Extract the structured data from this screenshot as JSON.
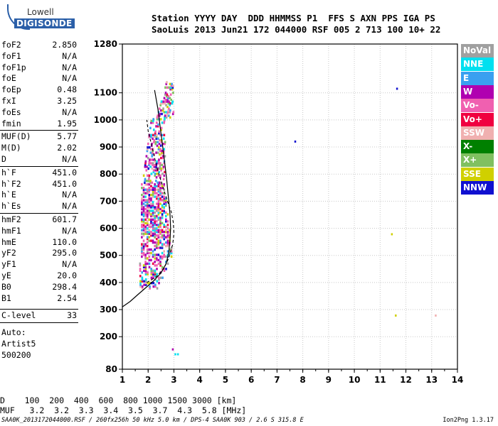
{
  "logo": {
    "line1": "Lowell",
    "line2": "DIGISONDE"
  },
  "header": {
    "labels_line": "Station YYYY DAY  DDD HHMMSS P1  FFS S AXN PPS IGA PS",
    "values_line": "SaoLuis 2013 Jun21 172 044000 RSF 005 2 713 100 10+ 22"
  },
  "params": [
    {
      "k": "foF2",
      "v": "2.850"
    },
    {
      "k": "foF1",
      "v": "N/A"
    },
    {
      "k": "foF1p",
      "v": "N/A"
    },
    {
      "k": "foE",
      "v": "N/A"
    },
    {
      "k": "foEp",
      "v": "0.48"
    },
    {
      "k": "fxI",
      "v": "3.25"
    },
    {
      "k": "foEs",
      "v": "N/A"
    },
    {
      "k": "fmin",
      "v": "1.95"
    },
    {
      "k": "MUF(D)",
      "v": "5.77"
    },
    {
      "k": "M(D)",
      "v": "2.02"
    },
    {
      "k": "D",
      "v": "N/A"
    },
    {
      "k": "h`F",
      "v": "451.0"
    },
    {
      "k": "h`F2",
      "v": "451.0"
    },
    {
      "k": "h`E",
      "v": "N/A"
    },
    {
      "k": "h`Es",
      "v": "N/A"
    },
    {
      "k": "hmF2",
      "v": "601.7"
    },
    {
      "k": "hmF1",
      "v": "N/A"
    },
    {
      "k": "hmE",
      "v": "110.0"
    },
    {
      "k": "yF2",
      "v": "295.0"
    },
    {
      "k": "yF1",
      "v": "N/A"
    },
    {
      "k": "yE",
      "v": "20.0"
    },
    {
      "k": "B0",
      "v": "298.4"
    },
    {
      "k": "B1",
      "v": "2.54"
    },
    {
      "k": "C-level",
      "v": "33"
    }
  ],
  "auto": {
    "line1": "Auto:",
    "line2": "Artist5",
    "line3": "500200"
  },
  "legend": [
    {
      "label": "NoVal",
      "color": "#a0a0a0"
    },
    {
      "label": "NNE",
      "color": "#00e0f0"
    },
    {
      "label": "E",
      "color": "#3aa0f0"
    },
    {
      "label": "W",
      "color": "#b000b0"
    },
    {
      "label": "Vo-",
      "color": "#f060b0"
    },
    {
      "label": "Vo+",
      "color": "#f00040"
    },
    {
      "label": "SSW",
      "color": "#f0b0b0"
    },
    {
      "label": "X-",
      "color": "#008000"
    },
    {
      "label": "X+",
      "color": "#80c060"
    },
    {
      "label": "SSE",
      "color": "#d0d000"
    },
    {
      "label": "NNW",
      "color": "#1010d0"
    }
  ],
  "footer": {
    "d_line": "D    100  200  400  600  800 1000 1500 3000 [km]",
    "muf_line": "MUF   3.2  3.2  3.3  3.4  3.5  3.7  4.3  5.8 [MHz]",
    "source": "SAA0K_2013172044000.RSF / 260fx256h 50 kHz 5.0 km / DPS-4 SAA0K 903 / 2.6 S 315.8 E",
    "version": "Ion2Png 1.3.17"
  },
  "chart_data": {
    "type": "scatter",
    "title": "",
    "xlabel": "",
    "ylabel": "",
    "xlim": [
      1,
      14
    ],
    "ylim": [
      80,
      1280
    ],
    "x_ticks": [
      1,
      2,
      3,
      4,
      5,
      6,
      7,
      8,
      9,
      10,
      11,
      12,
      13,
      14
    ],
    "y_ticks": [
      80,
      200,
      300,
      400,
      500,
      600,
      700,
      800,
      900,
      1000,
      1100,
      1280
    ],
    "grid": true,
    "isolated_points": [
      {
        "x": 11.65,
        "y": 1115,
        "series": "NNW"
      },
      {
        "x": 7.7,
        "y": 920,
        "series": "NNW"
      },
      {
        "x": 11.45,
        "y": 578,
        "series": "SSE"
      },
      {
        "x": 11.6,
        "y": 278,
        "series": "SSE"
      },
      {
        "x": 13.15,
        "y": 278,
        "series": "SSW"
      },
      {
        "x": 2.95,
        "y": 153,
        "series": "W"
      },
      {
        "x": 3.05,
        "y": 135,
        "series": "NNE"
      },
      {
        "x": 3.15,
        "y": 135,
        "series": "NNE"
      }
    ],
    "trace_region": {
      "x_min": 1.65,
      "x_max": 2.95,
      "y_min": 375,
      "y_max": 1140
    },
    "profile_solid": [
      [
        1.0,
        310
      ],
      [
        1.3,
        330
      ],
      [
        1.6,
        355
      ],
      [
        1.9,
        380
      ],
      [
        2.2,
        405
      ],
      [
        2.5,
        435
      ],
      [
        2.7,
        470
      ],
      [
        2.8,
        510
      ],
      [
        2.85,
        560
      ],
      [
        2.87,
        600
      ],
      [
        2.85,
        650
      ],
      [
        2.8,
        700
      ],
      [
        2.72,
        780
      ],
      [
        2.62,
        860
      ],
      [
        2.5,
        950
      ],
      [
        2.38,
        1040
      ],
      [
        2.25,
        1110
      ]
    ],
    "profile_dashed": [
      [
        1.95,
        400
      ],
      [
        2.3,
        420
      ],
      [
        2.6,
        450
      ],
      [
        2.8,
        490
      ],
      [
        2.95,
        540
      ],
      [
        3.0,
        580
      ],
      [
        2.98,
        620
      ],
      [
        2.9,
        660
      ],
      [
        2.75,
        700
      ],
      [
        2.55,
        760
      ],
      [
        2.35,
        820
      ],
      [
        2.15,
        900
      ],
      [
        2.0,
        960
      ],
      [
        1.95,
        1000
      ]
    ]
  }
}
